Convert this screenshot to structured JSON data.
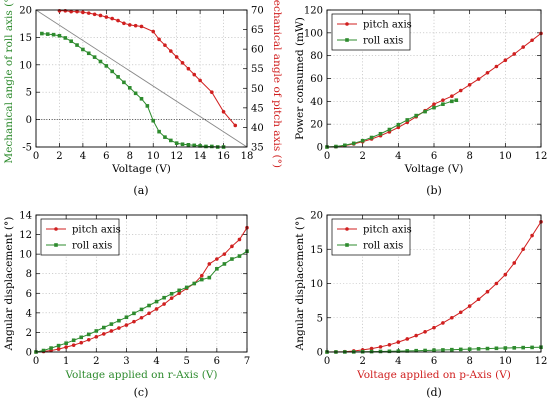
{
  "colors": {
    "pitch": "#d01f1f",
    "roll": "#2e8b2e",
    "line": "#888888",
    "axis": "#000000"
  },
  "chart_data": [
    {
      "type": "line",
      "caption": "(a)",
      "xlabel": "Voltage (V)",
      "ylabel": "Mechanical angle of roll axis (°)",
      "ylabel_right": "Mechanical angle of pitch axis (°)",
      "xlim": [
        0,
        18
      ],
      "ylim": [
        -5,
        20
      ],
      "ylim_right": [
        35,
        70
      ],
      "x_ticks": [
        "0",
        "2",
        "4",
        "6",
        "8",
        "10",
        "12",
        "14",
        "16",
        "18"
      ],
      "y_ticks": [
        "-5",
        "0",
        "5",
        "10",
        "15",
        "20"
      ],
      "y_ticks_right": [
        "35",
        "40",
        "45",
        "50",
        "55",
        "60",
        "65",
        "70"
      ],
      "series": [
        {
          "name": "",
          "axis": "right",
          "color": "pitch",
          "x": [
            2,
            2.5,
            3,
            3.5,
            4,
            4.5,
            5,
            5.5,
            6,
            6.5,
            7,
            7.5,
            8,
            8.5,
            9,
            10,
            10.5,
            11,
            11.5,
            12,
            12.5,
            13,
            13.5,
            14,
            15,
            16,
            17
          ],
          "y": [
            69.8,
            69.8,
            69.6,
            69.6,
            69.4,
            69.2,
            68.9,
            68.6,
            68.2,
            67.8,
            67.3,
            66.6,
            66.2,
            66.0,
            65.8,
            64.5,
            62.5,
            61.0,
            59.5,
            58.0,
            56.5,
            55.0,
            53.5,
            52.0,
            49.0,
            44.0,
            40.5
          ]
        },
        {
          "name": "",
          "axis": "left",
          "color": "roll",
          "x": [
            0.5,
            1,
            1.5,
            2,
            2.5,
            3,
            3.5,
            4,
            4.5,
            5,
            5.5,
            6,
            6.5,
            7,
            7.5,
            8,
            8.5,
            9,
            9.5,
            10,
            10.5,
            11,
            11.5,
            12,
            12.5,
            13,
            13.5,
            14,
            14.5,
            15,
            15.5,
            16
          ],
          "y": [
            15.7,
            15.6,
            15.5,
            15.3,
            14.9,
            14.3,
            13.6,
            12.8,
            12.1,
            11.4,
            10.6,
            9.8,
            8.8,
            7.8,
            6.8,
            5.8,
            4.8,
            3.8,
            2.5,
            -0.2,
            -2.2,
            -3.2,
            -3.8,
            -4.3,
            -4.5,
            -4.6,
            -4.7,
            -4.8,
            -4.9,
            -4.9,
            -5.0,
            -5.0
          ]
        }
      ],
      "reference_line": {
        "x": [
          0,
          18
        ],
        "y": [
          20,
          -5
        ]
      }
    },
    {
      "type": "line",
      "caption": "(b)",
      "xlabel": "Voltage (V)",
      "ylabel": "Power consumed (mW)",
      "xlim": [
        0,
        12
      ],
      "ylim": [
        0,
        120
      ],
      "x_ticks": [
        "0",
        "2",
        "4",
        "6",
        "8",
        "10",
        "12"
      ],
      "y_ticks": [
        "0",
        "20",
        "40",
        "60",
        "80",
        "100",
        "120"
      ],
      "legend": "top-left",
      "series": [
        {
          "name": "pitch axis",
          "color": "pitch",
          "x": [
            0,
            0.5,
            1,
            1.5,
            2,
            2.5,
            3,
            3.5,
            4,
            4.5,
            5,
            5.5,
            6,
            6.5,
            7,
            7.5,
            8,
            8.5,
            9,
            9.5,
            10,
            10.5,
            11,
            11.5,
            12
          ],
          "y": [
            0,
            0.3,
            1.2,
            2.7,
            4.6,
            7,
            9.9,
            13.3,
            17.2,
            21.6,
            26.5,
            31.8,
            37.5,
            41,
            44.5,
            49.5,
            54.5,
            59.5,
            65,
            70.5,
            76,
            81.5,
            87.5,
            93.5,
            99.5
          ]
        },
        {
          "name": "roll axis",
          "color": "roll",
          "x": [
            0,
            0.5,
            1,
            1.5,
            2,
            2.5,
            3,
            3.5,
            4,
            4.5,
            5,
            5.5,
            6,
            6.5,
            7,
            7.25
          ],
          "y": [
            0,
            0.4,
            1.5,
            3.2,
            5.5,
            8.3,
            11.6,
            15.3,
            19.5,
            23.7,
            27.5,
            31,
            34.5,
            37.5,
            40,
            41
          ]
        }
      ]
    },
    {
      "type": "line",
      "caption": "(c)",
      "xlabel": "Voltage applied on r-Axis (V)",
      "ylabel": "Angular displacement (°)",
      "xlim": [
        0,
        7
      ],
      "ylim": [
        0,
        14
      ],
      "x_ticks": [
        "0",
        "1",
        "2",
        "3",
        "4",
        "5",
        "6",
        "7"
      ],
      "y_ticks": [
        "0",
        "2",
        "4",
        "6",
        "8",
        "10",
        "12",
        "14"
      ],
      "legend": "top-left",
      "series": [
        {
          "name": "pitch axis",
          "color": "pitch",
          "x": [
            0,
            0.25,
            0.5,
            0.75,
            1,
            1.25,
            1.5,
            1.75,
            2,
            2.25,
            2.5,
            2.75,
            3,
            3.25,
            3.5,
            3.75,
            4,
            4.25,
            4.5,
            4.75,
            5,
            5.25,
            5.5,
            5.75,
            6,
            6.25,
            6.5,
            6.75,
            7
          ],
          "y": [
            0,
            0.05,
            0.15,
            0.3,
            0.5,
            0.7,
            0.95,
            1.25,
            1.55,
            1.85,
            2.15,
            2.45,
            2.75,
            3.1,
            3.5,
            3.95,
            4.4,
            4.9,
            5.5,
            6.0,
            6.5,
            7.0,
            7.8,
            9.0,
            9.5,
            10.0,
            10.8,
            11.5,
            12.7
          ]
        },
        {
          "name": "roll axis",
          "color": "roll",
          "x": [
            0,
            0.25,
            0.5,
            0.75,
            1,
            1.25,
            1.5,
            1.75,
            2,
            2.25,
            2.5,
            2.75,
            3,
            3.25,
            3.5,
            3.75,
            4,
            4.25,
            4.5,
            4.75,
            5,
            5.25,
            5.5,
            5.75,
            6,
            6.25,
            6.5,
            6.75,
            7
          ],
          "y": [
            0,
            0.15,
            0.4,
            0.65,
            0.9,
            1.2,
            1.5,
            1.8,
            2.15,
            2.5,
            2.85,
            3.2,
            3.55,
            3.95,
            4.35,
            4.75,
            5.15,
            5.55,
            5.95,
            6.3,
            6.6,
            7.0,
            7.4,
            7.6,
            8.5,
            9.0,
            9.5,
            9.8,
            10.3
          ]
        }
      ]
    },
    {
      "type": "line",
      "caption": "(d)",
      "xlabel": "Voltage applied on p-Axis (V)",
      "ylabel": "Angular displacement (°)",
      "xlim": [
        0,
        12
      ],
      "ylim": [
        0,
        20
      ],
      "x_ticks": [
        "0",
        "2",
        "4",
        "6",
        "8",
        "10",
        "12"
      ],
      "y_ticks": [
        "0",
        "5",
        "10",
        "15",
        "20"
      ],
      "legend": "top-left",
      "series": [
        {
          "name": "pitch axis",
          "color": "pitch",
          "x": [
            0,
            0.5,
            1,
            1.5,
            2,
            2.5,
            3,
            3.5,
            4,
            4.5,
            5,
            5.5,
            6,
            6.5,
            7,
            7.5,
            8,
            8.5,
            9,
            9.5,
            10,
            10.5,
            11,
            11.5,
            12
          ],
          "y": [
            0,
            0.01,
            0.05,
            0.15,
            0.3,
            0.5,
            0.75,
            1.05,
            1.45,
            1.9,
            2.4,
            2.95,
            3.55,
            4.25,
            5.0,
            5.8,
            6.7,
            7.7,
            8.8,
            10.0,
            11.3,
            13.0,
            15.0,
            17.0,
            19.0
          ]
        },
        {
          "name": "roll axis",
          "color": "roll",
          "x": [
            0,
            0.5,
            1,
            1.5,
            2,
            2.5,
            3,
            3.5,
            4,
            4.5,
            5,
            5.5,
            6,
            6.5,
            7,
            7.5,
            8,
            8.5,
            9,
            9.5,
            10,
            10.5,
            11,
            11.5,
            12
          ],
          "y": [
            0,
            0.005,
            0.01,
            0.02,
            0.04,
            0.06,
            0.08,
            0.1,
            0.13,
            0.16,
            0.19,
            0.22,
            0.26,
            0.3,
            0.34,
            0.38,
            0.42,
            0.46,
            0.5,
            0.54,
            0.58,
            0.61,
            0.64,
            0.67,
            0.7
          ]
        }
      ]
    }
  ]
}
